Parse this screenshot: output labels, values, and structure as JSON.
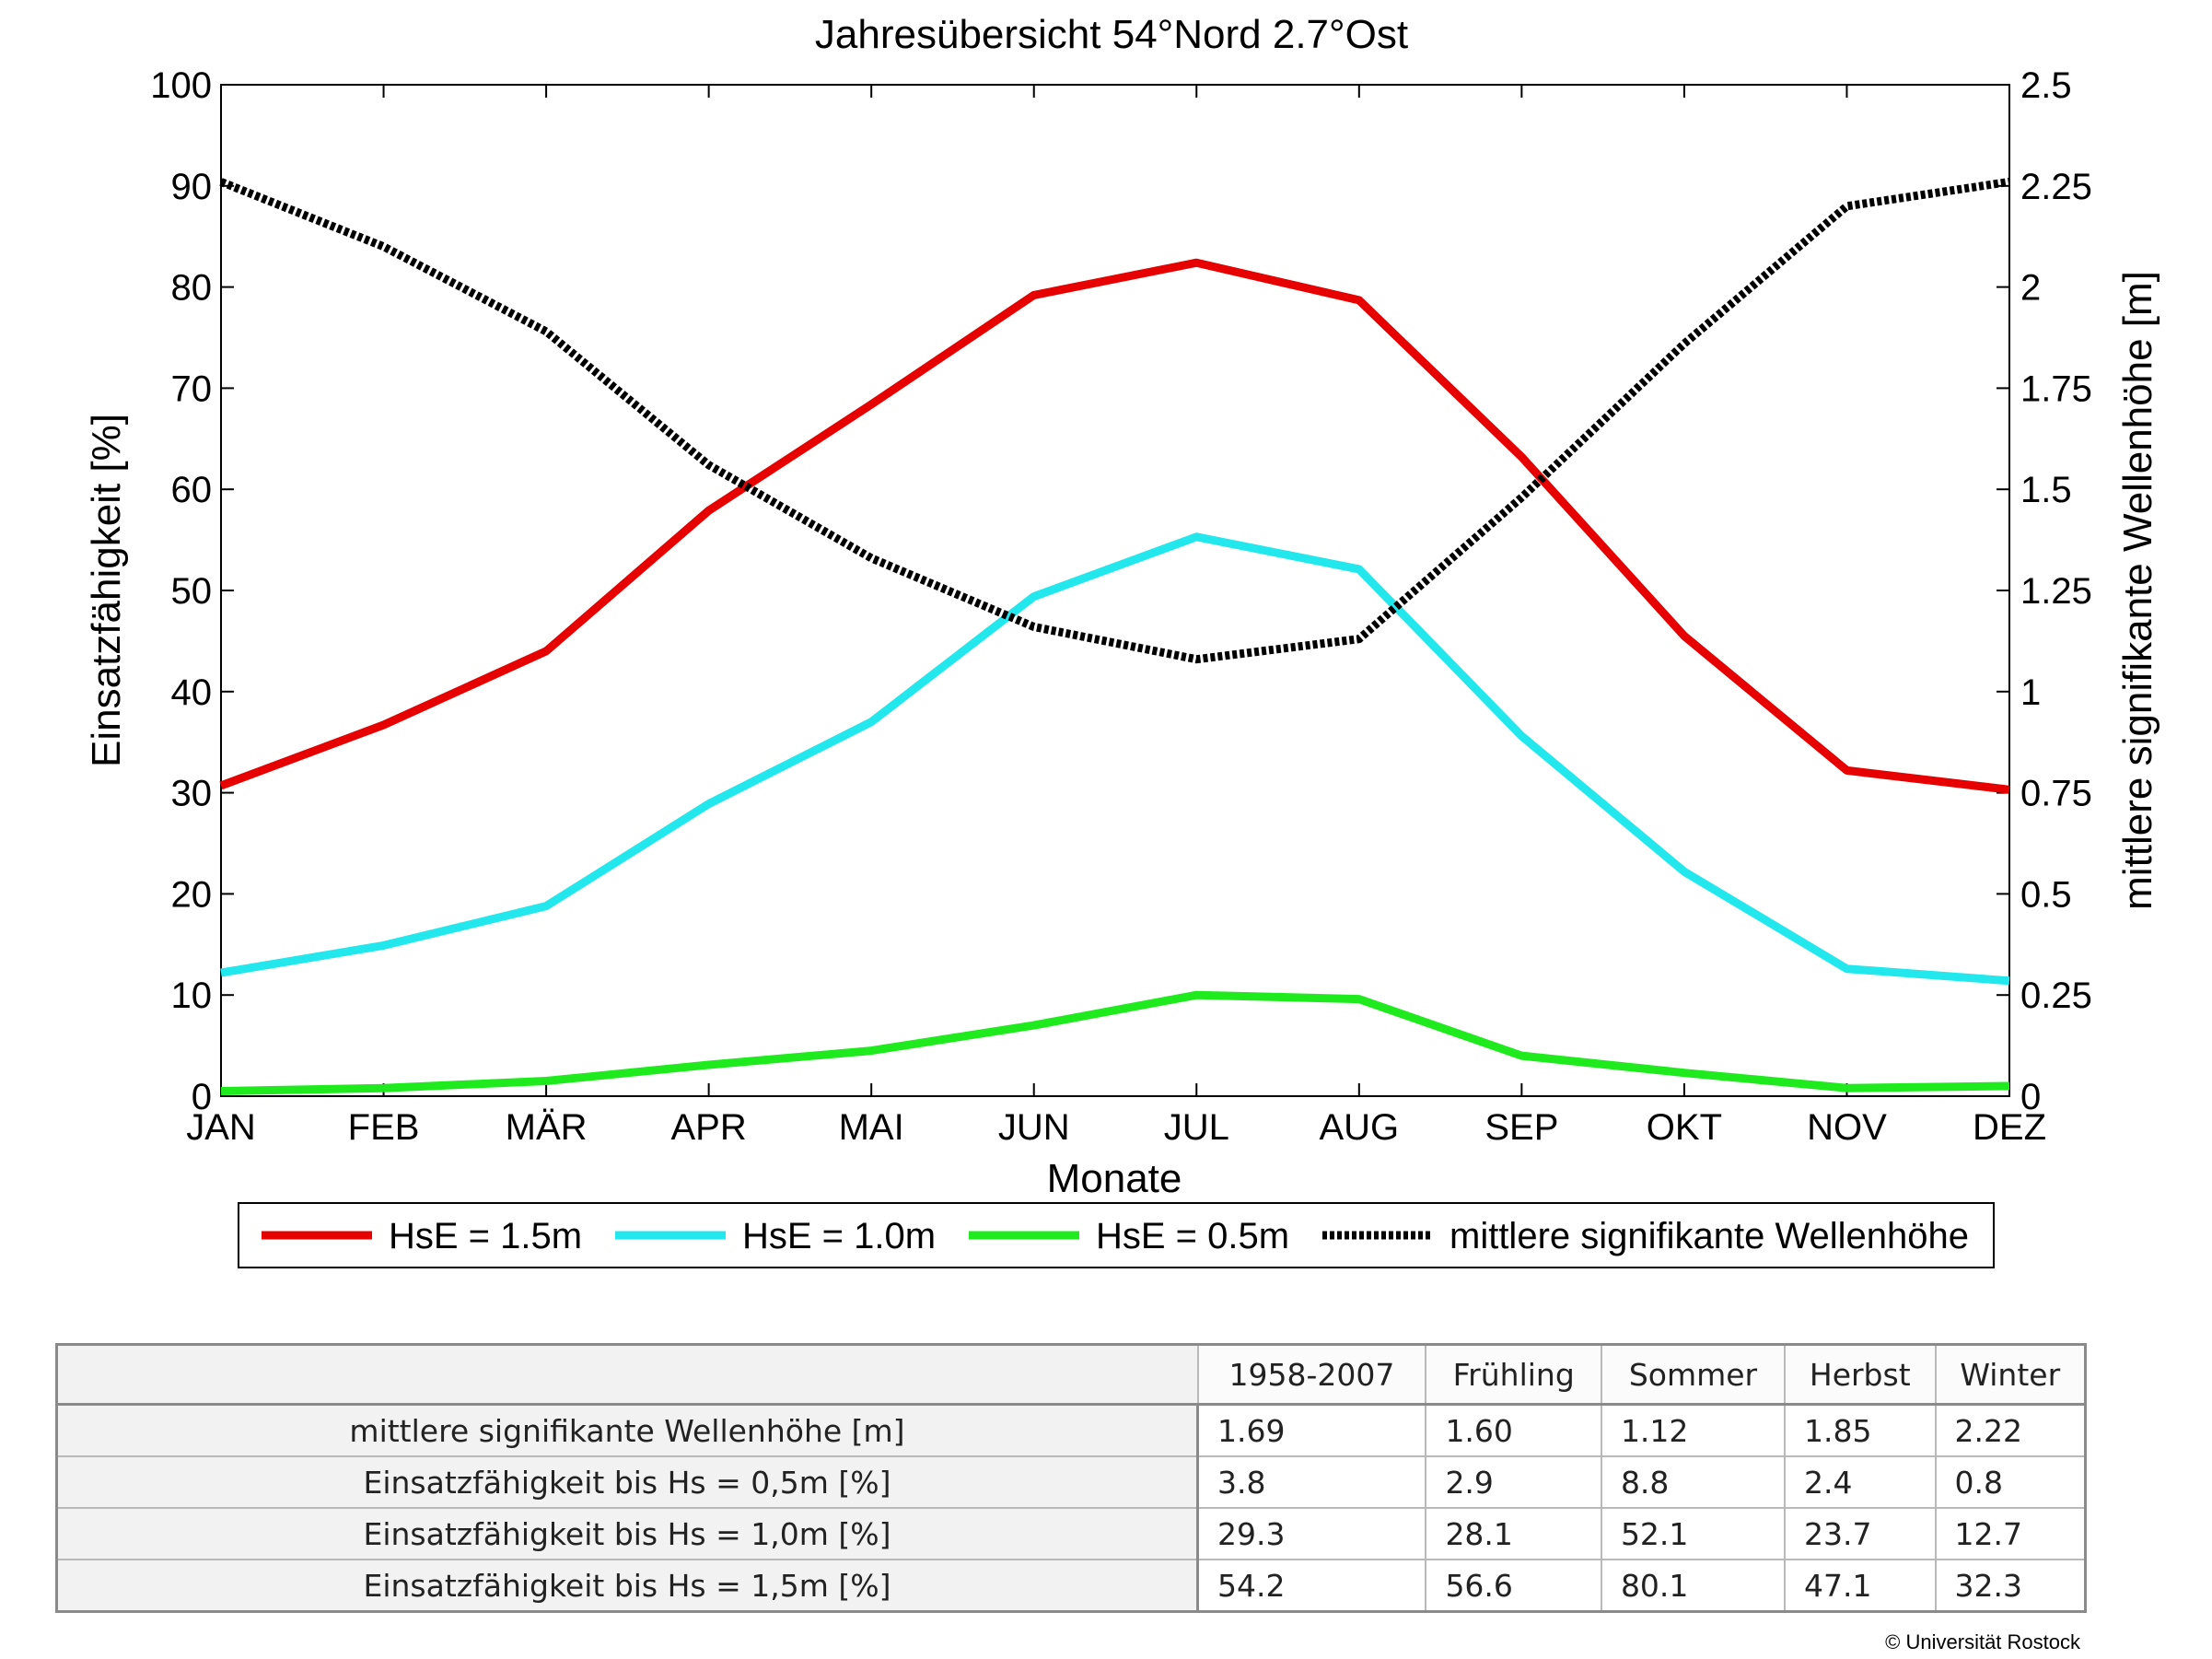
{
  "chart_data": {
    "type": "line",
    "title": "Jahresübersicht  54°Nord  2.7°Ost",
    "xlabel": "Monate",
    "ylabel_left": "Einsatzfähigkeit [%]",
    "ylabel_right": "mittlere signifikante Wellenhöhe [m]",
    "categories": [
      "JAN",
      "FEB",
      "MÄR",
      "APR",
      "MAI",
      "JUN",
      "JUL",
      "AUG",
      "SEP",
      "OKT",
      "NOV",
      "DEZ"
    ],
    "ylim_left": [
      0,
      100
    ],
    "ylim_right": [
      0,
      2.5
    ],
    "yticks_left": [
      "0",
      "10",
      "20",
      "30",
      "40",
      "50",
      "60",
      "70",
      "80",
      "90",
      "100"
    ],
    "yticks_right": [
      "0",
      "0.25",
      "0.5",
      "0.75",
      "1",
      "1.25",
      "1.5",
      "1.75",
      "2",
      "2.25",
      "2.5"
    ],
    "grid": false,
    "legend_position": "bottom",
    "series": [
      {
        "name": "HsE = 1.5m",
        "axis": "left",
        "color": "#e60000",
        "style": "solid",
        "values": [
          30.7,
          36.7,
          44.0,
          57.9,
          68.4,
          79.2,
          82.4,
          78.7,
          63.2,
          45.5,
          32.2,
          30.3
        ]
      },
      {
        "name": "HsE = 1.0m",
        "axis": "left",
        "color": "#22e8ee",
        "style": "solid",
        "values": [
          12.2,
          14.9,
          18.8,
          28.9,
          37.0,
          49.4,
          55.3,
          52.1,
          35.6,
          22.2,
          12.6,
          11.4
        ]
      },
      {
        "name": "HsE = 0.5m",
        "axis": "left",
        "color": "#1eea1e",
        "style": "solid",
        "values": [
          0.5,
          0.8,
          1.5,
          3.1,
          4.5,
          7.0,
          10.0,
          9.6,
          4.0,
          2.3,
          0.8,
          1.0
        ]
      },
      {
        "name": "mittlere signifikante Wellenhöhe",
        "axis": "right",
        "color": "#000000",
        "style": "dotted",
        "values": [
          2.26,
          2.1,
          1.89,
          1.56,
          1.33,
          1.16,
          1.08,
          1.13,
          1.48,
          1.86,
          2.2,
          2.26
        ]
      }
    ]
  },
  "table": {
    "columns": [
      "1958-2007",
      "Frühling",
      "Sommer",
      "Herbst",
      "Winter"
    ],
    "rows": [
      {
        "label": "mittlere signifikante Wellenhöhe [m]",
        "values": [
          "1.69",
          "1.60",
          "1.12",
          "1.85",
          "2.22"
        ]
      },
      {
        "label": "Einsatzfähigkeit bis Hs = 0,5m [%]",
        "values": [
          "3.8",
          "2.9",
          "8.8",
          "2.4",
          "0.8"
        ]
      },
      {
        "label": "Einsatzfähigkeit bis Hs = 1,0m [%]",
        "values": [
          "29.3",
          "28.1",
          "52.1",
          "23.7",
          "12.7"
        ]
      },
      {
        "label": "Einsatzfähigkeit bis Hs = 1,5m [%]",
        "values": [
          "54.2",
          "56.6",
          "80.1",
          "47.1",
          "32.3"
        ]
      }
    ]
  },
  "copyright": "© Universität Rostock"
}
